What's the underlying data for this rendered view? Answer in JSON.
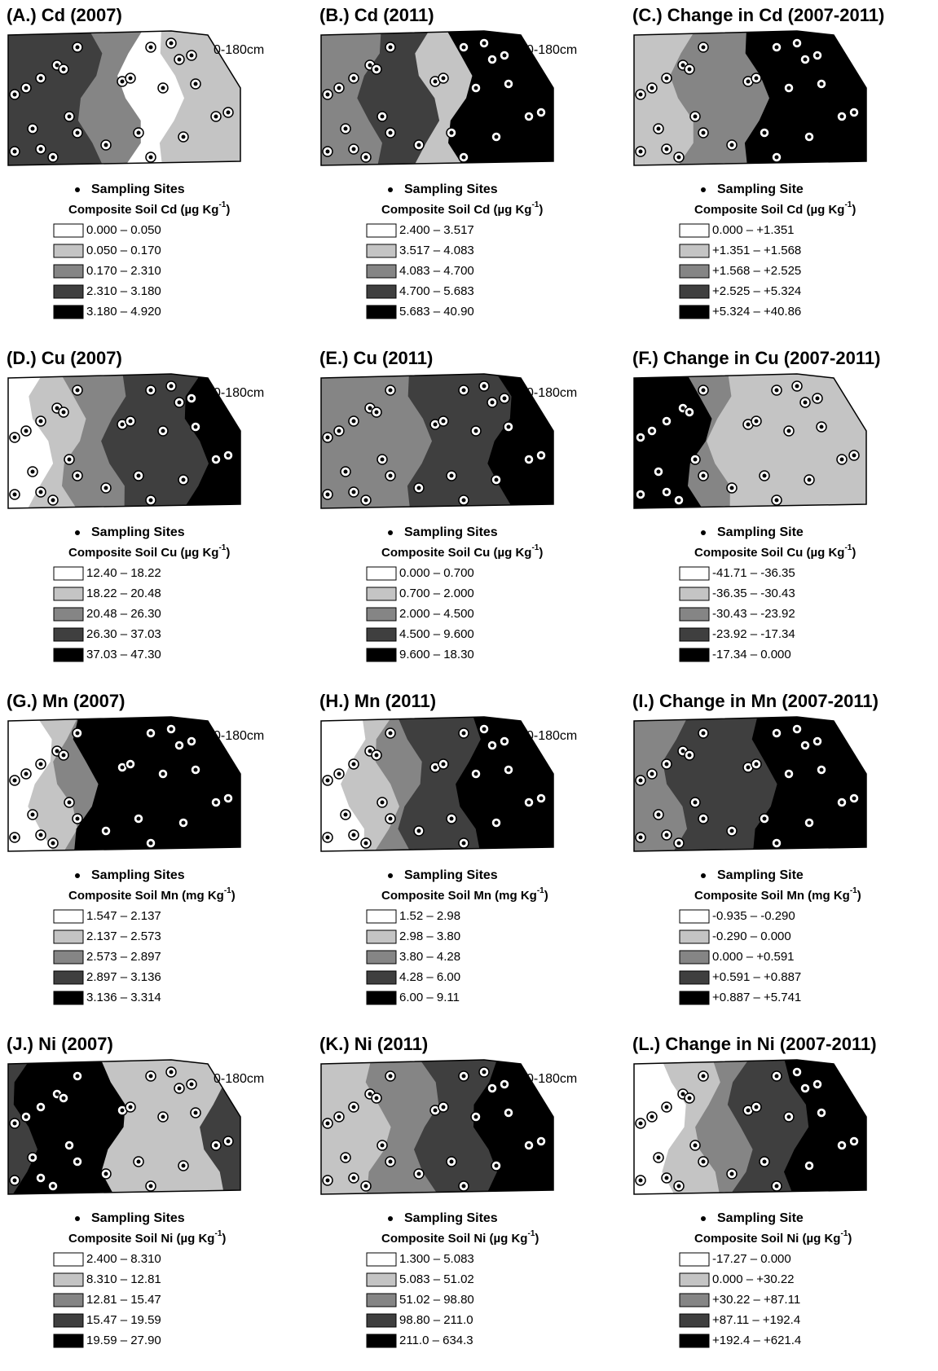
{
  "panels": [
    {
      "title": "(A.) Cd (2007)",
      "depth": "0-180cm",
      "legend": {
        "sites": "Sampling Sites",
        "title": "Composite Soil Cd (µg Kg",
        "unit_sup": "-1",
        "close": ")",
        "classes": [
          "0.000 – 0.050",
          "0.050 – 0.170",
          "0.170 – 2.310",
          "2.310 – 3.180",
          "3.180 – 4.920"
        ]
      }
    },
    {
      "title": "(B.) Cd (2011)",
      "depth": "0-180cm",
      "legend": {
        "sites": "Sampling Sites",
        "title": "Composite Soil Cd (µg Kg",
        "unit_sup": "-1",
        "close": ")",
        "classes": [
          "2.400 – 3.517",
          "3.517 – 4.083",
          "4.083 – 4.700",
          "4.700 – 5.683",
          "5.683 – 40.90"
        ]
      }
    },
    {
      "title": "(C.) Change in Cd (2007-2011)",
      "legend": {
        "sites": "Sampling Site",
        "title": "Composite Soil Cd (µg Kg",
        "unit_sup": "-1",
        "close": ")",
        "classes": [
          "0.000 – +1.351",
          "+1.351 – +1.568",
          "+1.568 – +2.525",
          "+2.525 – +5.324",
          "+5.324 – +40.86"
        ]
      }
    },
    {
      "title": "(D.) Cu (2007)",
      "depth": "0-180cm",
      "legend": {
        "sites": "Sampling Sites",
        "title": "Composite Soil Cu (µg Kg",
        "unit_sup": "-1",
        "close": ")",
        "classes": [
          "12.40 – 18.22",
          "18.22 – 20.48",
          "20.48 – 26.30",
          "26.30 – 37.03",
          "37.03 – 47.30"
        ]
      }
    },
    {
      "title": "(E.) Cu (2011)",
      "depth": "0-180cm",
      "legend": {
        "sites": "Sampling Sites",
        "title": "Composite Soil Cu (µg Kg",
        "unit_sup": "-1",
        "close": ")",
        "classes": [
          "0.000 – 0.700",
          "0.700 – 2.000",
          "2.000 – 4.500",
          "4.500 – 9.600",
          "9.600 – 18.30"
        ]
      }
    },
    {
      "title": "(F.) Change in Cu (2007-2011)",
      "legend": {
        "sites": "Sampling Site",
        "title": "Composite Soil Cu (µg Kg",
        "unit_sup": "-1",
        "close": ")",
        "classes": [
          "-41.71 – -36.35",
          "-36.35 – -30.43",
          "-30.43 – -23.92",
          "-23.92 – -17.34",
          "-17.34 – 0.000"
        ]
      }
    },
    {
      "title": "(G.) Mn (2007)",
      "depth": "0-180cm",
      "legend": {
        "sites": "Sampling Sites",
        "title": "Composite Soil Mn (mg Kg",
        "unit_sup": "-1",
        "close": ")",
        "classes": [
          "1.547 – 2.137",
          "2.137 – 2.573",
          "2.573 – 2.897",
          "2.897 – 3.136",
          "3.136 – 3.314"
        ]
      }
    },
    {
      "title": "(H.) Mn (2011)",
      "depth": "0-180cm",
      "legend": {
        "sites": "Sampling Sites",
        "title": "Composite Soil Mn (mg Kg",
        "unit_sup": "-1",
        "close": ")",
        "classes": [
          "1.52 – 2.98",
          "2.98 – 3.80",
          "3.80 – 4.28",
          "4.28 – 6.00",
          "6.00 – 9.11"
        ]
      }
    },
    {
      "title": "(I.) Change in Mn (2007-2011)",
      "legend": {
        "sites": "Sampling Site",
        "title": "Composite Soil Mn (mg Kg",
        "unit_sup": "-1",
        "close": ")",
        "classes": [
          "-0.935 – -0.290",
          "-0.290 – 0.000",
          "0.000 – +0.591",
          "+0.591 – +0.887",
          "+0.887 – +5.741"
        ]
      }
    },
    {
      "title": "(J.) Ni (2007)",
      "depth": "0-180cm",
      "legend": {
        "sites": "Sampling Sites",
        "title": "Composite Soil Ni (µg Kg",
        "unit_sup": "-1",
        "close": ")",
        "classes": [
          "2.400 – 8.310",
          "8.310 – 12.81",
          "12.81 – 15.47",
          "15.47 – 19.59",
          "19.59 – 27.90"
        ]
      }
    },
    {
      "title": "(K.) Ni (2011)",
      "depth": "0-180cm",
      "legend": {
        "sites": "Sampling Sites",
        "title": "Composite Soil Ni (µg Kg",
        "unit_sup": "-1",
        "close": ")",
        "classes": [
          "1.300 – 5.083",
          "5.083 – 51.02",
          "51.02 – 98.80",
          "98.80 – 211.0",
          "211.0 – 634.3"
        ]
      }
    },
    {
      "title": "(L.) Change in Ni (2007-2011)",
      "legend": {
        "sites": "Sampling Site",
        "title": "Composite Soil Ni (µg Kg",
        "unit_sup": "-1",
        "close": ")",
        "classes": [
          "-17.27 – 0.000",
          "0.000 – +30.22",
          "+30.22 – +87.11",
          "+87.11 – +192.4",
          "+192.4 – +621.4"
        ]
      }
    }
  ]
}
